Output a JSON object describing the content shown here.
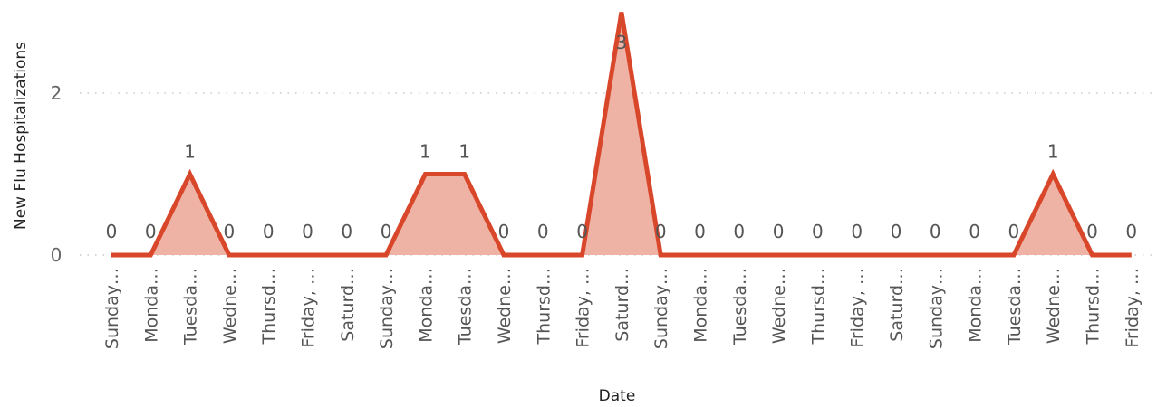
{
  "chart_data": {
    "type": "area",
    "xlabel": "Date",
    "ylabel": "New Flu Hospitalizations",
    "categories": [
      "Sunday…",
      "Monda…",
      "Tuesda…",
      "Wedne…",
      "Thursd…",
      "Friday, …",
      "Saturd…",
      "Sunday…",
      "Monda…",
      "Tuesda…",
      "Wedne…",
      "Thursd…",
      "Friday, …",
      "Saturd…",
      "Sunday…",
      "Monda…",
      "Tuesda…",
      "Wedne…",
      "Thursd…",
      "Friday, …",
      "Saturd…",
      "Sunday…",
      "Monda…",
      "Tuesda…",
      "Wedne…",
      "Thursd…",
      "Friday, …"
    ],
    "values": [
      0,
      0,
      1,
      0,
      0,
      0,
      0,
      0,
      1,
      1,
      0,
      0,
      0,
      3,
      0,
      0,
      0,
      0,
      0,
      0,
      0,
      0,
      0,
      0,
      1,
      0,
      0
    ],
    "yticks": [
      0,
      2
    ],
    "ylim": [
      0,
      3
    ],
    "grid": true,
    "legend": "none",
    "data_labels": true,
    "colors": {
      "line": "#d9472b",
      "fill": "#efb3a6"
    }
  }
}
